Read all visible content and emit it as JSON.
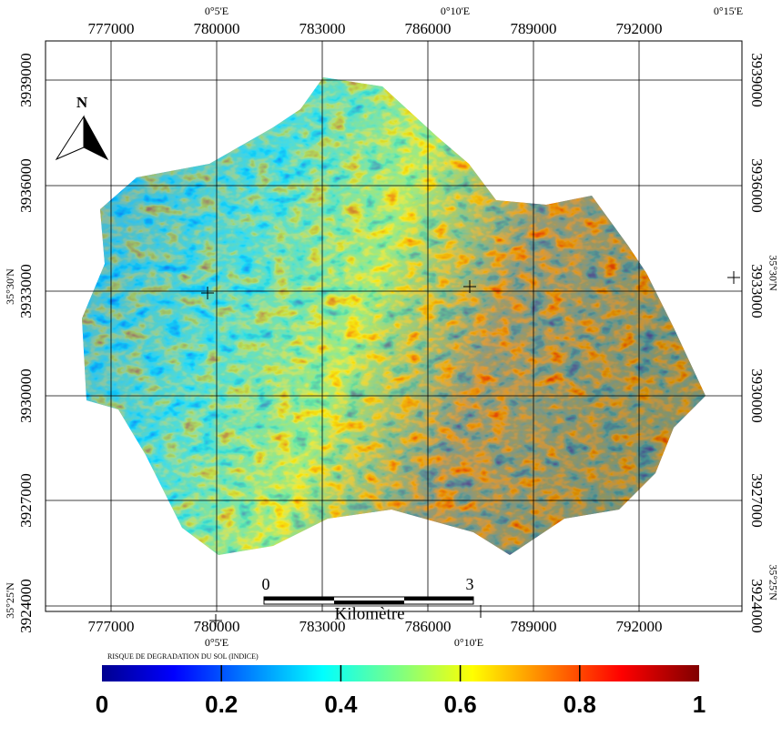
{
  "top_labels": [
    "0°5'E",
    "0°10'E",
    "0°15'E"
  ],
  "bottom_labels": [
    "0°5'E",
    "0°10'E"
  ],
  "eastings_top": [
    "777000",
    "780000",
    "783000",
    "786000",
    "789000",
    "792000"
  ],
  "eastings_bottom": [
    "777000",
    "780000",
    "783000",
    "786000",
    "789000",
    "792000"
  ],
  "northings_left": [
    "3939000",
    "3936000",
    "3933000",
    "3930000",
    "3927000",
    "3924000"
  ],
  "northings_right": [
    "3939000",
    "3936000",
    "3933000",
    "3930000",
    "3927000",
    "3924000"
  ],
  "lat_left": [
    "35°30'N",
    "35°25'N"
  ],
  "lat_right": [
    "35°30'N",
    "35°25'N"
  ],
  "north": "N",
  "scale": {
    "start": "0",
    "end": "3",
    "unit": "Kilomètre"
  },
  "legend": {
    "title": "RISQUE DE DEGRADATION DU SOL (INDICE)",
    "ticks": [
      0,
      0.2,
      0.4,
      0.6,
      0.8,
      1
    ]
  }
}
